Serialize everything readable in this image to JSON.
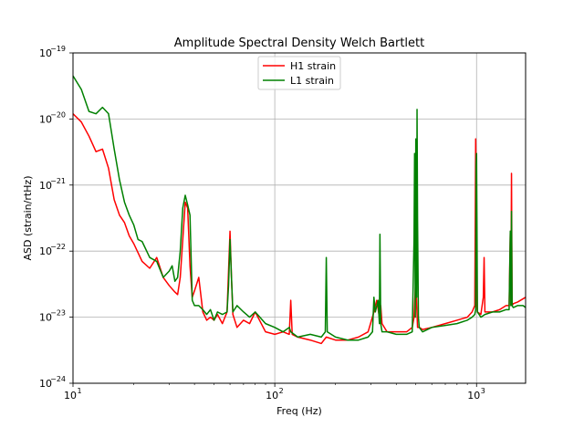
{
  "chart_data": {
    "type": "line",
    "title": "Amplitude Spectral Density Welch Bartlett",
    "xlabel": "Freq (Hz)",
    "ylabel": "ASD (strain/rtHz)",
    "x_scale": "log",
    "y_scale": "log",
    "xlim": [
      10,
      1750
    ],
    "ylim": [
      1e-24,
      1e-19
    ],
    "x_ticks": [
      {
        "value": 10,
        "base": "10",
        "exp": "1"
      },
      {
        "value": 100,
        "base": "10",
        "exp": "2"
      },
      {
        "value": 1000,
        "base": "10",
        "exp": "3"
      }
    ],
    "y_ticks": [
      {
        "value": 1e-24,
        "base": "10",
        "exp": "−24"
      },
      {
        "value": 1e-23,
        "base": "10",
        "exp": "−23"
      },
      {
        "value": 1e-22,
        "base": "10",
        "exp": "−22"
      },
      {
        "value": 1e-21,
        "base": "10",
        "exp": "−21"
      },
      {
        "value": 1e-20,
        "base": "10",
        "exp": "−20"
      },
      {
        "value": 1e-19,
        "base": "10",
        "exp": "−19"
      }
    ],
    "grid": true,
    "legend_position": "top-center",
    "series": [
      {
        "name": "H1 strain",
        "color": "#ff0000",
        "x": [
          10,
          11,
          12,
          13,
          14,
          15,
          16,
          17,
          18,
          19,
          20,
          22,
          24,
          26,
          28,
          30,
          32,
          33,
          34,
          35,
          36,
          37,
          38,
          39,
          40,
          42,
          44,
          46,
          48,
          50,
          52,
          55,
          58,
          59,
          60,
          61,
          62,
          65,
          70,
          75,
          80,
          90,
          100,
          110,
          118,
          120,
          122,
          130,
          150,
          170,
          180,
          200,
          230,
          260,
          290,
          310,
          320,
          330,
          335,
          340,
          360,
          400,
          450,
          480,
          490,
          500,
          505,
          510,
          520,
          540,
          600,
          700,
          800,
          900,
          950,
          980,
          990,
          1000,
          1005,
          1010,
          1050,
          1080,
          1090,
          1100,
          1200,
          1300,
          1400,
          1450,
          1470,
          1480,
          1490,
          1500,
          1520,
          1600,
          1700,
          1750
        ],
        "y": [
          1.2e-20,
          9e-21,
          5.5e-21,
          3.2e-21,
          3.5e-21,
          1.8e-21,
          6e-22,
          3.5e-22,
          2.7e-22,
          1.7e-22,
          1.3e-22,
          7e-23,
          5.5e-23,
          8e-23,
          4e-23,
          3e-23,
          2.4e-23,
          2.2e-23,
          4e-23,
          1.5e-22,
          5.5e-22,
          4.5e-22,
          6e-23,
          2e-23,
          2.5e-23,
          4e-23,
          1.2e-23,
          9e-24,
          1e-23,
          9e-24,
          1.1e-23,
          8e-24,
          1.2e-23,
          5e-23,
          2e-22,
          4e-23,
          1.1e-23,
          7e-24,
          9e-24,
          8e-24,
          1.2e-23,
          6e-24,
          5.5e-24,
          6e-24,
          5.5e-24,
          1.8e-23,
          5.5e-24,
          5e-24,
          4.5e-24,
          4e-24,
          5e-24,
          4.5e-24,
          4.5e-24,
          5e-24,
          6e-24,
          1.2e-23,
          1.8e-23,
          1e-23,
          1.5e-23,
          8e-24,
          6e-24,
          6e-24,
          6e-24,
          7e-24,
          1e-23,
          4e-23,
          1.5e-23,
          7e-24,
          7e-24,
          6.5e-24,
          7e-24,
          8e-24,
          9e-24,
          1e-23,
          1.2e-23,
          1.5e-23,
          5e-21,
          4e-22,
          1.5e-23,
          1.2e-23,
          1.1e-23,
          2e-23,
          8e-23,
          1.2e-23,
          1.2e-23,
          1.3e-23,
          1.5e-23,
          1.5e-23,
          2e-22,
          1.5e-23,
          1.5e-21,
          1.5e-23,
          1.6e-23,
          1.7e-23,
          1.9e-23,
          2e-23
        ]
      },
      {
        "name": "L1 strain",
        "color": "#008000",
        "x": [
          10,
          11,
          12,
          13,
          14,
          15,
          16,
          17,
          18,
          19,
          20,
          21,
          22,
          24,
          26,
          28,
          30,
          31,
          32,
          33,
          34,
          35,
          36,
          37,
          38,
          39,
          40,
          42,
          44,
          46,
          48,
          50,
          52,
          55,
          58,
          59,
          60,
          61,
          62,
          65,
          70,
          75,
          80,
          90,
          100,
          110,
          118,
          120,
          130,
          150,
          170,
          178,
          180,
          182,
          200,
          230,
          260,
          290,
          305,
          310,
          315,
          325,
          330,
          332,
          335,
          340,
          360,
          400,
          450,
          480,
          490,
          493,
          497,
          500,
          505,
          507,
          510,
          515,
          520,
          540,
          600,
          700,
          800,
          900,
          950,
          980,
          990,
          995,
          1000,
          1005,
          1010,
          1050,
          1100,
          1200,
          1300,
          1400,
          1450,
          1470,
          1480,
          1490,
          1500,
          1520,
          1600,
          1700,
          1750
        ],
        "y": [
          4.5e-20,
          2.8e-20,
          1.3e-20,
          1.2e-20,
          1.5e-20,
          1.2e-20,
          3.5e-21,
          1.2e-21,
          5.5e-22,
          3.5e-22,
          2.5e-22,
          1.5e-22,
          1.4e-22,
          8e-23,
          7e-23,
          4e-23,
          5e-23,
          6e-23,
          3.5e-23,
          4e-23,
          1e-22,
          4.5e-22,
          7e-22,
          5e-22,
          3.5e-22,
          1.8e-23,
          1.5e-23,
          1.5e-23,
          1.3e-23,
          1.1e-23,
          1.3e-23,
          9e-24,
          1.2e-23,
          1.1e-23,
          1.2e-23,
          3e-23,
          1.5e-22,
          4e-23,
          1.2e-23,
          1.5e-23,
          1.2e-23,
          1e-23,
          1.2e-23,
          8e-24,
          7e-24,
          6e-24,
          7e-24,
          6e-24,
          5e-24,
          5.5e-24,
          5e-24,
          6e-24,
          8e-23,
          6e-24,
          5e-24,
          4.5e-24,
          4.5e-24,
          5e-24,
          6e-24,
          2e-23,
          1.2e-23,
          1.8e-23,
          8e-24,
          1.8e-22,
          8e-24,
          6e-24,
          6e-24,
          5.5e-24,
          5.5e-24,
          6e-24,
          1.5e-22,
          3e-21,
          1e-23,
          5e-21,
          2e-23,
          1.4e-20,
          3e-22,
          1e-23,
          7e-24,
          6e-24,
          7e-24,
          7.5e-24,
          8e-24,
          9e-24,
          1e-23,
          1.1e-23,
          1.3e-23,
          2e-21,
          3e-21,
          2e-22,
          1.2e-23,
          1e-23,
          1.1e-23,
          1.2e-23,
          1.2e-23,
          1.3e-23,
          1.3e-23,
          2e-22,
          1.5e-23,
          4e-22,
          1.5e-23,
          1.4e-23,
          1.5e-23,
          1.5e-23,
          1.4e-23
        ]
      }
    ]
  }
}
